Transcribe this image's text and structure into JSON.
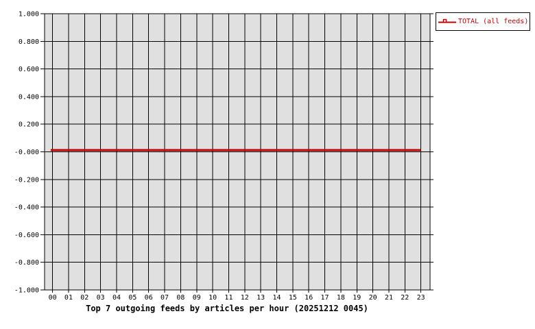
{
  "page": {
    "background": "#ffffff"
  },
  "chart_data": {
    "type": "line",
    "title": "Top 7 outgoing feeds by articles per hour (20251212 0045)",
    "xlabel": "",
    "ylabel": "",
    "categories": [
      "00",
      "01",
      "02",
      "03",
      "04",
      "05",
      "06",
      "07",
      "08",
      "09",
      "10",
      "11",
      "12",
      "13",
      "14",
      "15",
      "16",
      "17",
      "18",
      "19",
      "20",
      "21",
      "22",
      "23"
    ],
    "y_ticks": [
      {
        "label": "1.000",
        "value": 1.0
      },
      {
        "label": "0.800",
        "value": 0.8
      },
      {
        "label": "0.600",
        "value": 0.6
      },
      {
        "label": "0.400",
        "value": 0.4
      },
      {
        "label": "0.200",
        "value": 0.2
      },
      {
        "label": "-0.000",
        "value": 0.0
      },
      {
        "label": "-0.200",
        "value": -0.2
      },
      {
        "label": "-0.400",
        "value": -0.4
      },
      {
        "label": "-0.600",
        "value": -0.6
      },
      {
        "label": "-0.800",
        "value": -0.8
      },
      {
        "label": "-1.000",
        "value": -1.0
      }
    ],
    "ylim": [
      -1.0,
      1.0
    ],
    "grid": true,
    "grid_color": "#000000",
    "plot_background": "#e0e0e0",
    "legend_position": "top-right-outside",
    "series": [
      {
        "name": "TOTAL (all feeds)",
        "color": "#c00000",
        "marker": "open-square",
        "values": [
          0,
          0,
          0,
          0,
          0,
          0,
          0,
          0,
          0,
          0,
          0,
          0,
          0,
          0,
          0,
          0,
          0,
          0,
          0,
          0,
          0,
          0,
          0,
          0
        ]
      }
    ]
  }
}
